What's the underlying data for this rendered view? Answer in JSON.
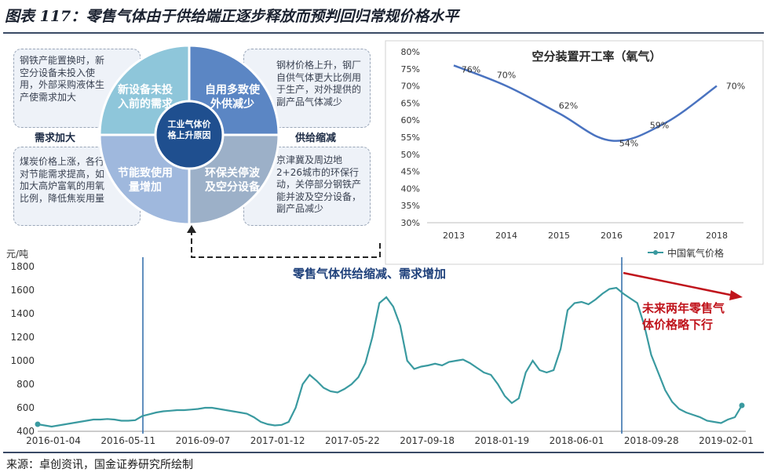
{
  "page": {
    "title": "图表 117：零售气体由于供给端正逐步释放而预判回归常规价格水平",
    "source": "来源：卓创资讯，国金证券研究所绘制"
  },
  "diagram": {
    "center": "工业气体价格上升原因",
    "quadrants": {
      "top_left": "新设备未投入前的需求",
      "top_right": "自用多致使外供减少",
      "bottom_left": "节能致使用量增加",
      "bottom_right": "环保关停波及空分设备"
    },
    "boxes": {
      "top_left": "钢铁产能置换时，新空分设备未投入使用，外部采购液体生产使需求加大",
      "top_right": "钢材价格上升，钢厂自供气体更大比例用于生产，对外提供的副产品气体减少",
      "bottom_left": "煤炭价格上涨，各行对节能需求提高，如加大高炉富氧的用氧比例，降低焦炭用量",
      "bottom_right": "京津冀及周边地2+26城市的环保行动，关停部分钢铁产能并波及空分设备，副产品减少"
    },
    "labels": {
      "demand": "需求加大",
      "supply": "供给缩减"
    },
    "annotation": "零售气体供给缩减、需求增加",
    "forecast": "未来两年零售气体价格略下行"
  },
  "chart_data": [
    {
      "type": "line",
      "title": "空分装置开工率（氧气）",
      "x": [
        "2013",
        "2014",
        "2015",
        "2016",
        "2017",
        "2018"
      ],
      "series": [
        {
          "values": [
            76,
            70,
            62,
            54,
            59,
            70
          ]
        }
      ],
      "data_labels": [
        "76%",
        "70%",
        "62%",
        "54%",
        "59%",
        "70%"
      ],
      "ylim": [
        30,
        80
      ],
      "yticks": [
        "30%",
        "35%",
        "40%",
        "45%",
        "50%",
        "55%",
        "60%",
        "65%",
        "70%",
        "75%",
        "80%"
      ],
      "line_color": "#4a73c0"
    },
    {
      "type": "line",
      "ylabel": "元/吨",
      "ylim": [
        400,
        1800
      ],
      "yticks": [
        400,
        600,
        800,
        1000,
        1200,
        1400,
        1600,
        1800
      ],
      "xticks": [
        "2016-01-04",
        "2016-05-11",
        "2016-09-07",
        "2017-01-12",
        "2017-05-22",
        "2017-09-18",
        "2018-01-19",
        "2018-06-01",
        "2018-09-28",
        "2019-02-01"
      ],
      "series": [
        {
          "name": "中国氧气价格",
          "color": "#3a9aa0",
          "values": [
            460,
            450,
            440,
            450,
            460,
            470,
            480,
            490,
            500,
            500,
            505,
            500,
            490,
            490,
            495,
            530,
            545,
            560,
            570,
            575,
            580,
            580,
            585,
            590,
            600,
            600,
            590,
            580,
            570,
            560,
            550,
            520,
            480,
            460,
            450,
            455,
            480,
            600,
            800,
            880,
            830,
            770,
            740,
            730,
            760,
            800,
            860,
            980,
            1200,
            1490,
            1540,
            1460,
            1300,
            1000,
            930,
            950,
            960,
            975,
            960,
            990,
            1000,
            1010,
            980,
            940,
            900,
            880,
            800,
            700,
            640,
            680,
            900,
            1000,
            920,
            900,
            920,
            1100,
            1430,
            1490,
            1500,
            1480,
            1520,
            1570,
            1610,
            1620,
            1570,
            1530,
            1490,
            1300,
            1050,
            900,
            750,
            650,
            590,
            560,
            540,
            520,
            490,
            480,
            470,
            500,
            520,
            620
          ]
        }
      ]
    }
  ]
}
